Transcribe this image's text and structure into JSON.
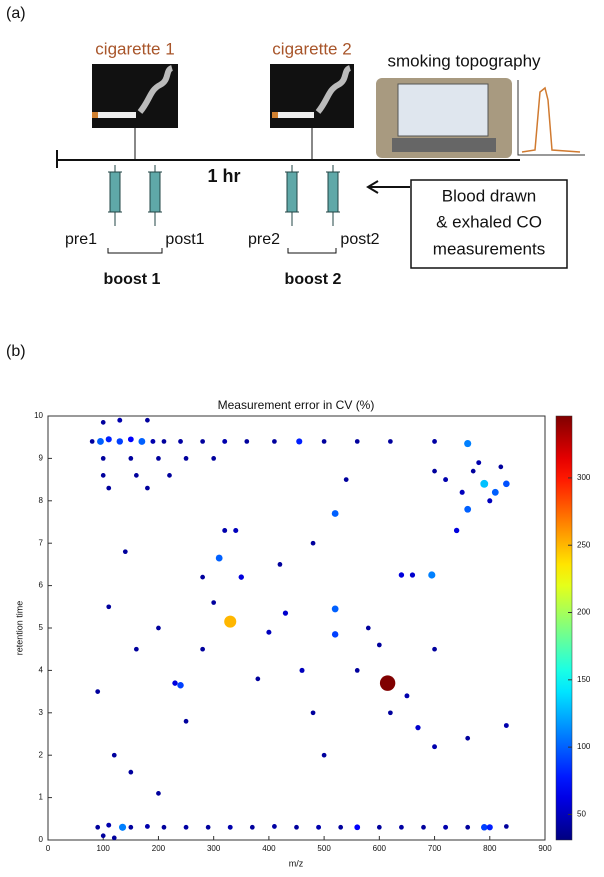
{
  "diagram": {
    "panel_a_label": "(a)",
    "cigarettes": [
      "cigarette 1",
      "cigarette 2"
    ],
    "device": "smoking topography",
    "interval": "1 hr",
    "samples": [
      "pre1",
      "post1",
      "pre2",
      "post2"
    ],
    "boosts": [
      "boost 1",
      "boost 2"
    ],
    "note": [
      "Blood drawn",
      "& exhaled CO",
      "measurements"
    ],
    "panel_b_label": "(b)"
  },
  "chart_data": {
    "type": "scatter",
    "title": "Measurement error in CV (%)",
    "xlabel": "m/z",
    "ylabel": "retention time",
    "xlim": [
      0,
      900
    ],
    "xticks": [
      0,
      100,
      200,
      300,
      400,
      500,
      600,
      700,
      800,
      900
    ],
    "ylim": [
      0,
      10
    ],
    "yticks": [
      0,
      1,
      2,
      3,
      4,
      5,
      6,
      7,
      8,
      9,
      10
    ],
    "colormap": "jet",
    "colorbar": {
      "lim": [
        31,
        346
      ],
      "ticks": [
        50,
        100,
        150,
        200,
        250,
        300
      ]
    },
    "x": [
      90,
      110,
      135,
      150,
      180,
      210,
      250,
      290,
      330,
      370,
      410,
      450,
      490,
      530,
      560,
      600,
      640,
      680,
      720,
      760,
      790,
      800,
      830,
      100,
      120,
      80,
      95,
      110,
      130,
      150,
      170,
      190,
      210,
      240,
      280,
      320,
      360,
      410,
      455,
      500,
      560,
      620,
      700,
      760,
      100,
      130,
      180,
      100,
      150,
      200,
      250,
      300,
      100,
      160,
      220,
      110,
      180,
      720,
      750,
      770,
      790,
      810,
      830,
      800,
      760,
      740,
      780,
      820,
      700,
      520,
      320,
      340,
      310,
      350,
      640,
      660,
      695,
      330,
      520,
      520,
      430,
      400,
      460,
      240,
      230,
      615,
      650,
      670,
      700,
      830,
      760,
      160,
      200,
      280,
      300,
      380,
      480,
      560,
      600,
      120,
      150,
      200,
      250,
      280,
      420,
      480,
      540,
      580,
      620,
      500,
      90,
      110,
      140,
      700
    ],
    "y": [
      0.3,
      0.35,
      0.3,
      0.3,
      0.32,
      0.3,
      0.3,
      0.3,
      0.3,
      0.3,
      0.32,
      0.3,
      0.3,
      0.3,
      0.3,
      0.3,
      0.3,
      0.3,
      0.3,
      0.3,
      0.3,
      0.3,
      0.32,
      0.1,
      0.05,
      9.4,
      9.4,
      9.45,
      9.4,
      9.45,
      9.4,
      9.4,
      9.4,
      9.4,
      9.4,
      9.4,
      9.4,
      9.4,
      9.4,
      9.4,
      9.4,
      9.4,
      9.4,
      9.35,
      9.85,
      9.9,
      9.9,
      9.0,
      9.0,
      9.0,
      9.0,
      9.0,
      8.6,
      8.6,
      8.6,
      8.3,
      8.3,
      8.5,
      8.2,
      8.7,
      8.4,
      8.2,
      8.4,
      8.0,
      7.8,
      7.3,
      8.9,
      8.8,
      8.7,
      7.7,
      7.3,
      7.3,
      6.65,
      6.2,
      6.25,
      6.25,
      6.25,
      5.15,
      5.45,
      4.85,
      5.35,
      4.9,
      4.0,
      3.65,
      3.7,
      3.7,
      3.4,
      2.65,
      2.2,
      2.7,
      2.4,
      4.5,
      5.0,
      4.5,
      5.6,
      3.8,
      3.0,
      4.0,
      4.6,
      2.0,
      1.6,
      1.1,
      2.8,
      6.2,
      6.5,
      7.0,
      8.5,
      5.0,
      3.0,
      2.0,
      3.5,
      5.5,
      6.8,
      4.5
    ],
    "values": [
      40,
      45,
      110,
      40,
      45,
      40,
      42,
      40,
      45,
      40,
      42,
      40,
      45,
      40,
      70,
      40,
      42,
      40,
      45,
      40,
      90,
      80,
      40,
      40,
      40,
      40,
      100,
      80,
      90,
      70,
      100,
      45,
      40,
      42,
      40,
      45,
      40,
      40,
      80,
      40,
      40,
      40,
      42,
      110,
      40,
      45,
      40,
      40,
      40,
      40,
      40,
      40,
      40,
      40,
      40,
      40,
      40,
      45,
      50,
      40,
      130,
      100,
      95,
      50,
      100,
      60,
      45,
      40,
      40,
      100,
      45,
      50,
      100,
      60,
      60,
      55,
      110,
      250,
      100,
      90,
      55,
      50,
      50,
      90,
      60,
      346,
      45,
      55,
      45,
      45,
      40,
      40,
      40,
      40,
      40,
      40,
      40,
      40,
      40,
      40,
      40,
      40,
      40,
      40,
      40,
      40,
      40,
      40,
      40,
      40,
      40,
      40,
      40,
      40
    ]
  }
}
